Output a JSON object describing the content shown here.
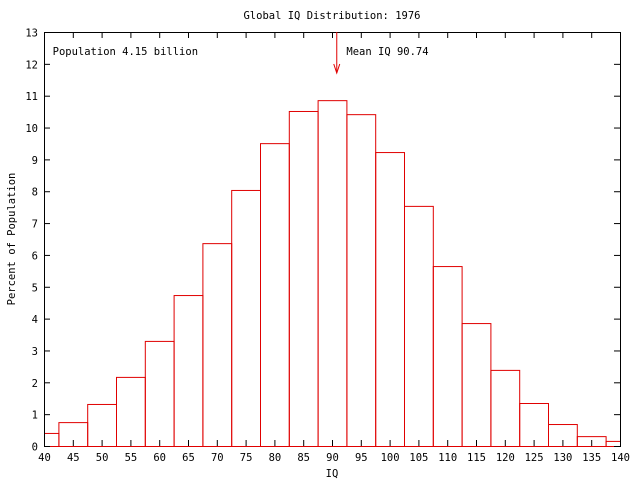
{
  "chart_data": {
    "type": "bar",
    "title": "Global IQ Distribution: 1976",
    "xlabel": "IQ",
    "ylabel": "Percent of Population",
    "xlim": [
      40,
      140
    ],
    "ylim": [
      0,
      13
    ],
    "grid": false,
    "x_ticks": [
      "40",
      "45",
      "50",
      "55",
      "60",
      "65",
      "70",
      "75",
      "80",
      "85",
      "90",
      "95",
      "100",
      "105",
      "110",
      "115",
      "120",
      "125",
      "130",
      "135",
      "140"
    ],
    "y_ticks": [
      "0",
      "1",
      "2",
      "3",
      "4",
      "5",
      "6",
      "7",
      "8",
      "9",
      "10",
      "11",
      "12",
      "13"
    ],
    "bins": [
      {
        "from": 40,
        "to": 42.5,
        "value": 0.41
      },
      {
        "from": 42.5,
        "to": 47.5,
        "value": 0.75
      },
      {
        "from": 47.5,
        "to": 52.5,
        "value": 1.32
      },
      {
        "from": 52.5,
        "to": 57.5,
        "value": 2.17
      },
      {
        "from": 57.5,
        "to": 62.5,
        "value": 3.3
      },
      {
        "from": 62.5,
        "to": 67.5,
        "value": 4.74
      },
      {
        "from": 67.5,
        "to": 72.5,
        "value": 6.37
      },
      {
        "from": 72.5,
        "to": 77.5,
        "value": 8.04
      },
      {
        "from": 77.5,
        "to": 82.5,
        "value": 9.51
      },
      {
        "from": 82.5,
        "to": 87.5,
        "value": 10.52
      },
      {
        "from": 87.5,
        "to": 92.5,
        "value": 10.86
      },
      {
        "from": 92.5,
        "to": 97.5,
        "value": 10.42
      },
      {
        "from": 97.5,
        "to": 102.5,
        "value": 9.23
      },
      {
        "from": 102.5,
        "to": 107.5,
        "value": 7.54
      },
      {
        "from": 107.5,
        "to": 112.5,
        "value": 5.65
      },
      {
        "from": 112.5,
        "to": 117.5,
        "value": 3.86
      },
      {
        "from": 117.5,
        "to": 122.5,
        "value": 2.39
      },
      {
        "from": 122.5,
        "to": 127.5,
        "value": 1.35
      },
      {
        "from": 127.5,
        "to": 132.5,
        "value": 0.69
      },
      {
        "from": 132.5,
        "to": 137.5,
        "value": 0.31
      },
      {
        "from": 137.5,
        "to": 140,
        "value": 0.16
      }
    ],
    "annotations": [
      {
        "text": "Population 4.15 billion",
        "x": 41.5,
        "y": 12.4
      },
      {
        "text": "Mean IQ 90.74",
        "x": 92.5,
        "y": 12.4,
        "arrow_at": 90.74
      }
    ],
    "bar_color": "#e00000",
    "axis_color": "#000000"
  }
}
